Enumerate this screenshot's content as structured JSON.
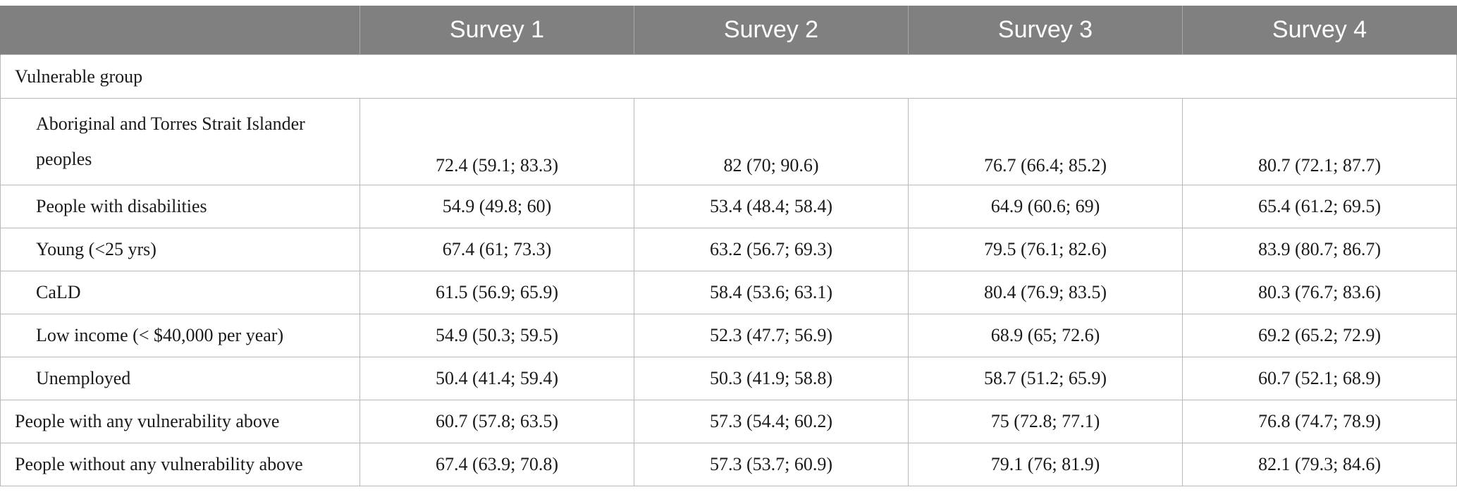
{
  "header": {
    "columns": [
      "",
      "Survey 1",
      "Survey 2",
      "Survey 3",
      "Survey 4"
    ]
  },
  "section": {
    "label": "Vulnerable group"
  },
  "rows": [
    {
      "label": "Aboriginal and Torres Strait Islander peoples",
      "values": [
        "72.4 (59.1; 83.3)",
        "82 (70; 90.6)",
        "76.7 (66.4; 85.2)",
        "80.7 (72.1; 87.7)"
      ]
    },
    {
      "label": "People with disabilities",
      "values": [
        "54.9 (49.8; 60)",
        "53.4 (48.4; 58.4)",
        "64.9 (60.6; 69)",
        "65.4 (61.2; 69.5)"
      ]
    },
    {
      "label": "Young (<25 yrs)",
      "values": [
        "67.4 (61; 73.3)",
        "63.2 (56.7; 69.3)",
        "79.5 (76.1; 82.6)",
        "83.9 (80.7; 86.7)"
      ]
    },
    {
      "label": "CaLD",
      "values": [
        "61.5 (56.9; 65.9)",
        "58.4 (53.6; 63.1)",
        "80.4 (76.9; 83.5)",
        "80.3 (76.7; 83.6)"
      ]
    },
    {
      "label": "Low income (< $40,000 per year)",
      "values": [
        "54.9 (50.3; 59.5)",
        "52.3 (47.7; 56.9)",
        "68.9 (65; 72.6)",
        "69.2 (65.2; 72.9)"
      ]
    },
    {
      "label": "Unemployed",
      "values": [
        "50.4 (41.4; 59.4)",
        "50.3 (41.9; 58.8)",
        "58.7 (51.2; 65.9)",
        "60.7 (52.1; 68.9)"
      ]
    }
  ],
  "summary_rows": [
    {
      "label": "People with any vulnerability above",
      "values": [
        "60.7 (57.8; 63.5)",
        "57.3 (54.4; 60.2)",
        "75 (72.8; 77.1)",
        "76.8 (74.7; 78.9)"
      ]
    },
    {
      "label": "People without any vulnerability above",
      "values": [
        "67.4 (63.9; 70.8)",
        "57.3 (53.7; 60.9)",
        "79.1 (76; 81.9)",
        "82.1 (79.3; 84.6)"
      ]
    }
  ]
}
